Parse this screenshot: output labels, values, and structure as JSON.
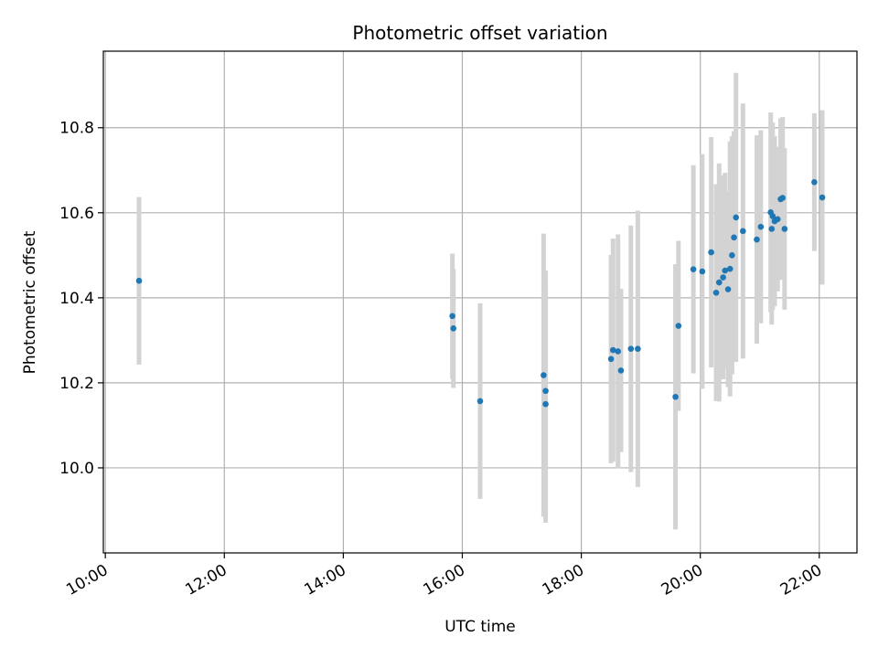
{
  "chart_data": {
    "type": "scatter",
    "title": "Photometric offset variation",
    "xlabel": "UTC time",
    "ylabel": "Photometric offset",
    "xlim": [
      "09:58",
      "22:38"
    ],
    "ylim": [
      9.8,
      10.98
    ],
    "x_ticks": [
      "10:00",
      "12:00",
      "14:00",
      "16:00",
      "18:00",
      "20:00",
      "22:00"
    ],
    "y_ticks": [
      10.0,
      10.2,
      10.4,
      10.6,
      10.8
    ],
    "grid": true,
    "colors": {
      "marker": "#1f77b4",
      "errorbar": "#d3d3d3",
      "grid": "#b0b0b0"
    },
    "series": [
      {
        "points": [
          {
            "time": "10:34",
            "y": 10.44,
            "err": 0.197
          },
          {
            "time": "15:50",
            "y": 10.357,
            "err": 0.147
          },
          {
            "time": "15:51",
            "y": 10.328,
            "err": 0.14
          },
          {
            "time": "16:18",
            "y": 10.157,
            "err": 0.23
          },
          {
            "time": "17:22",
            "y": 10.218,
            "err": 0.333
          },
          {
            "time": "17:24",
            "y": 10.181,
            "err": 0.283
          },
          {
            "time": "17:24",
            "y": 10.15,
            "err": 0.279
          },
          {
            "time": "18:30",
            "y": 10.256,
            "err": 0.245
          },
          {
            "time": "18:32",
            "y": 10.277,
            "err": 0.262
          },
          {
            "time": "18:37",
            "y": 10.274,
            "err": 0.275
          },
          {
            "time": "18:40",
            "y": 10.229,
            "err": 0.192
          },
          {
            "time": "18:50",
            "y": 10.28,
            "err": 0.29
          },
          {
            "time": "18:57",
            "y": 10.28,
            "err": 0.325
          },
          {
            "time": "19:35",
            "y": 10.167,
            "err": 0.312
          },
          {
            "time": "19:38",
            "y": 10.334,
            "err": 0.2
          },
          {
            "time": "19:53",
            "y": 10.467,
            "err": 0.245
          },
          {
            "time": "20:02",
            "y": 10.462,
            "err": 0.276
          },
          {
            "time": "20:11",
            "y": 10.507,
            "err": 0.271
          },
          {
            "time": "20:16",
            "y": 10.412,
            "err": 0.255
          },
          {
            "time": "20:19",
            "y": 10.436,
            "err": 0.28
          },
          {
            "time": "20:23",
            "y": 10.448,
            "err": 0.24
          },
          {
            "time": "20:25",
            "y": 10.464,
            "err": 0.23
          },
          {
            "time": "20:28",
            "y": 10.42,
            "err": 0.23
          },
          {
            "time": "20:30",
            "y": 10.468,
            "err": 0.3
          },
          {
            "time": "20:32",
            "y": 10.5,
            "err": 0.28
          },
          {
            "time": "20:34",
            "y": 10.542,
            "err": 0.25
          },
          {
            "time": "20:36",
            "y": 10.589,
            "err": 0.34
          },
          {
            "time": "20:43",
            "y": 10.557,
            "err": 0.3
          },
          {
            "time": "20:57",
            "y": 10.537,
            "err": 0.245
          },
          {
            "time": "21:01",
            "y": 10.567,
            "err": 0.227
          },
          {
            "time": "21:11",
            "y": 10.601,
            "err": 0.235
          },
          {
            "time": "21:12",
            "y": 10.562,
            "err": 0.225
          },
          {
            "time": "21:13",
            "y": 10.592,
            "err": 0.22
          },
          {
            "time": "21:15",
            "y": 10.58,
            "err": 0.2
          },
          {
            "time": "21:18",
            "y": 10.585,
            "err": 0.17
          },
          {
            "time": "21:21",
            "y": 10.632,
            "err": 0.19
          },
          {
            "time": "21:23",
            "y": 10.635,
            "err": 0.19
          },
          {
            "time": "21:25",
            "y": 10.562,
            "err": 0.19
          },
          {
            "time": "21:55",
            "y": 10.672,
            "err": 0.162
          },
          {
            "time": "22:03",
            "y": 10.636,
            "err": 0.205
          }
        ]
      }
    ]
  }
}
